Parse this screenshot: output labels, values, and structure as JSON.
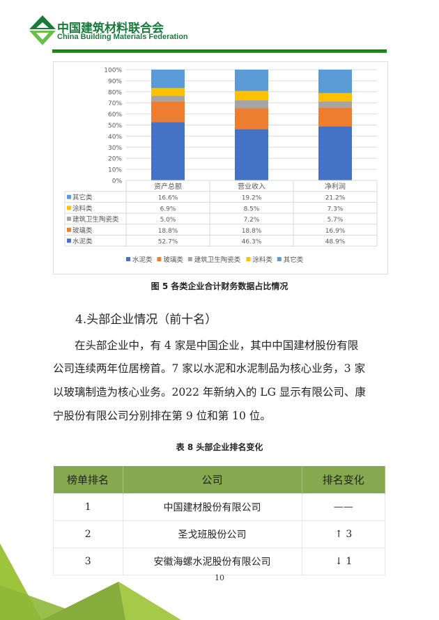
{
  "header": {
    "org_cn": "中国建筑材料联合会",
    "org_en": "China Building Materials Federation"
  },
  "chart_data": {
    "type": "bar",
    "stacked": true,
    "percent": true,
    "categories": [
      "资产总额",
      "营业收入",
      "净利润"
    ],
    "ylim": [
      0,
      100
    ],
    "yticks": [
      "0%",
      "10%",
      "20%",
      "30%",
      "40%",
      "50%",
      "60%",
      "70%",
      "80%",
      "90%",
      "100%"
    ],
    "grid": true,
    "legend_position": "bottom",
    "series": [
      {
        "name": "水泥类",
        "color": "#4472c4",
        "values": [
          52.7,
          46.3,
          48.9
        ],
        "labels": [
          "52.7%",
          "46.3%",
          "48.9%"
        ]
      },
      {
        "name": "玻璃类",
        "color": "#ed7d31",
        "values": [
          18.8,
          18.8,
          16.9
        ],
        "labels": [
          "18.8%",
          "18.8%",
          "16.9%"
        ]
      },
      {
        "name": "建筑卫生陶瓷类",
        "color": "#a5a5a5",
        "values": [
          5.0,
          7.2,
          5.7
        ],
        "labels": [
          "5.0%",
          "7.2%",
          "5.7%"
        ]
      },
      {
        "name": "涂料类",
        "color": "#ffc000",
        "values": [
          6.9,
          8.5,
          7.3
        ],
        "labels": [
          "6.9%",
          "8.5%",
          "7.3%"
        ]
      },
      {
        "name": "其它类",
        "color": "#5b9bd5",
        "values": [
          16.6,
          19.2,
          21.2
        ],
        "labels": [
          "16.6%",
          "19.2%",
          "21.2%"
        ]
      }
    ]
  },
  "figure_caption": "图 5  各类企业合计财务数据占比情况",
  "section_heading": "4.头部企业情况（前十名）",
  "paragraph_lines": [
    "　　在头部企业中，有 4 家是中国企业，其中中国建材股份有限",
    "公司连续两年位居榜首。7 家以水泥和水泥制品为核心业务，3 家",
    "以玻璃制造为核心业务。2022 年新纳入的 LG 显示有限公司、康",
    "宁股份有限公司分别排在第 9 位和第 10 位。"
  ],
  "table_caption": "表 8  头部企业排名变化",
  "table": {
    "headers": [
      "榜单排名",
      "公司",
      "排名变化"
    ],
    "rows": [
      [
        "1",
        "中国建材股份有限公司",
        "——"
      ],
      [
        "2",
        "圣戈班股份公司",
        "↑ 3"
      ],
      [
        "3",
        "安徽海螺水泥股份有限公司",
        "↓ 1"
      ]
    ]
  },
  "page_number": "10",
  "colors": {
    "brand_green": "#1a7a3c",
    "table_header": "#86a84f",
    "accent_lime": "#9dc43a"
  }
}
